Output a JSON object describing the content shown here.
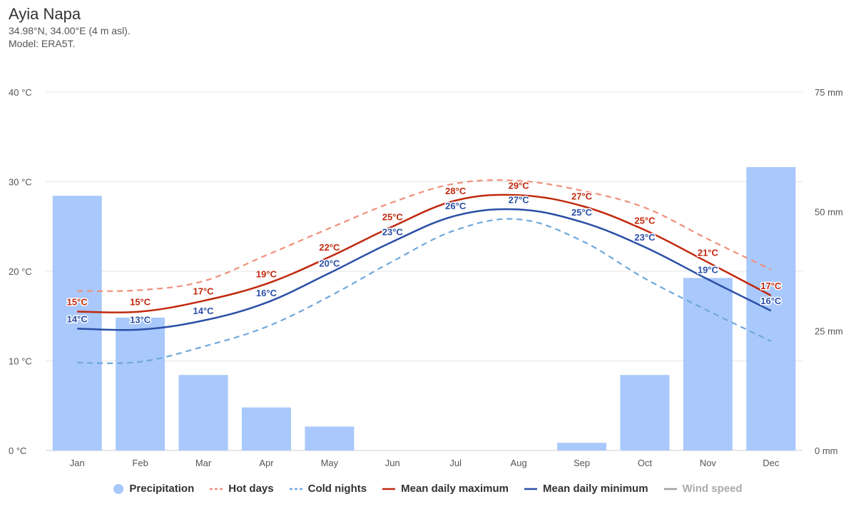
{
  "header": {
    "title": "Ayia Napa",
    "coords": "34.98°N, 34.00°E (4 m asl).",
    "model": "Model: ERA5T."
  },
  "colors": {
    "precipitation": "#a9c8fb",
    "hot_days": "#f0907a",
    "cold_nights": "#6fa8dc",
    "mean_max": "#c0290e",
    "mean_min": "#2a4fa6",
    "wind_speed": "#a0a0a0",
    "grid": "#e6e6e6"
  },
  "legend": [
    {
      "key": "precipitation",
      "label": "Precipitation",
      "icon": "dot-icon"
    },
    {
      "key": "hot_days",
      "label": "Hot days",
      "icon": "dashed-line-icon"
    },
    {
      "key": "cold_nights",
      "label": "Cold nights",
      "icon": "dashed-line-icon"
    },
    {
      "key": "mean_max",
      "label": "Mean daily maximum",
      "icon": "line-icon"
    },
    {
      "key": "mean_min",
      "label": "Mean daily minimum",
      "icon": "line-icon"
    },
    {
      "key": "wind_speed",
      "label": "Wind speed",
      "icon": "line-icon",
      "disabled": true
    }
  ],
  "chart_data": {
    "type": "bar",
    "categories": [
      "Jan",
      "Feb",
      "Mar",
      "Apr",
      "May",
      "Jun",
      "Jul",
      "Aug",
      "Sep",
      "Oct",
      "Nov",
      "Dec"
    ],
    "y_left": {
      "ticks": [
        0,
        10,
        20,
        30,
        40
      ],
      "unit": "°C",
      "tick_labels": [
        "0 °C",
        "10 °C",
        "20 °C",
        "30 °C",
        "40 °C"
      ],
      "ylim": [
        0,
        40
      ]
    },
    "y_right": {
      "ticks": [
        0,
        25,
        50,
        75
      ],
      "unit": "mm",
      "tick_labels": [
        "0 mm",
        "25 mm",
        "50 mm",
        "75 mm"
      ],
      "ylim": [
        0,
        75
      ]
    },
    "grid": true,
    "legend_position": "bottom",
    "series": [
      {
        "name": "Precipitation",
        "type": "bar",
        "axis": "right",
        "values": [
          53.3,
          27.8,
          15.8,
          9.0,
          5.0,
          0,
          0,
          0,
          1.6,
          15.8,
          36.1,
          59.3
        ]
      },
      {
        "name": "Hot days",
        "type": "line-dashed",
        "axis": "left",
        "values": [
          17.8,
          17.9,
          18.9,
          21.8,
          24.8,
          27.7,
          29.8,
          30.1,
          29.0,
          27.1,
          23.6,
          20.2
        ]
      },
      {
        "name": "Cold nights",
        "type": "line-dashed",
        "axis": "left",
        "values": [
          9.8,
          9.9,
          11.6,
          13.8,
          17.2,
          21.1,
          24.6,
          25.8,
          23.4,
          19.2,
          15.6,
          12.2
        ]
      },
      {
        "name": "Mean daily maximum",
        "type": "line",
        "axis": "left",
        "values": [
          15.5,
          15.5,
          16.7,
          18.6,
          21.6,
          25.0,
          27.9,
          28.5,
          27.3,
          24.6,
          21.0,
          17.3
        ],
        "labels": [
          "15°C",
          "15°C",
          "17°C",
          "19°C",
          "22°C",
          "25°C",
          "28°C",
          "29°C",
          "27°C",
          "25°C",
          "21°C",
          "17°C"
        ]
      },
      {
        "name": "Mean daily minimum",
        "type": "line",
        "axis": "left",
        "values": [
          13.6,
          13.5,
          14.5,
          16.5,
          19.8,
          23.3,
          26.2,
          26.9,
          25.5,
          22.7,
          19.1,
          15.6
        ],
        "labels": [
          "14°C",
          "13°C",
          "14°C",
          "16°C",
          "20°C",
          "23°C",
          "26°C",
          "27°C",
          "25°C",
          "23°C",
          "19°C",
          "16°C"
        ]
      }
    ]
  }
}
